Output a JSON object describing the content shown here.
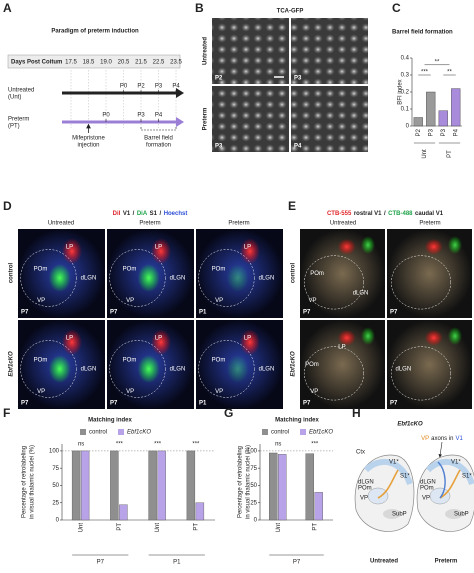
{
  "panel_a": {
    "letter": "A",
    "title": "Paradigm of preterm induction",
    "header_label": "Days Post Coitum",
    "days": [
      "17.5",
      "18.5",
      "19.0",
      "20.5",
      "21.5",
      "22.5",
      "23.5"
    ],
    "rows": [
      {
        "label": [
          "Untreated",
          "(Unt)"
        ],
        "ages": [
          "P0",
          "P2",
          "P3",
          "P4"
        ]
      },
      {
        "label": [
          "Preterm",
          "(PT)"
        ],
        "ages": [
          "P0",
          "P3",
          "P4"
        ]
      }
    ],
    "arrow_label": [
      "Mifepristone",
      "injection"
    ],
    "bracket_label": [
      "Barrel field",
      "formation"
    ]
  },
  "panel_b": {
    "letter": "B",
    "title": "TCA-GFP",
    "rows": [
      "Untreated",
      "Preterm"
    ],
    "image_labels": [
      "P2",
      "P3",
      "P3",
      "P4"
    ]
  },
  "panel_d": {
    "letter": "D",
    "title_parts": [
      "DiI",
      "V1",
      "/",
      "DiA",
      "S1",
      "/",
      "Hoechst"
    ],
    "title_colors": [
      "#e0262b",
      "#222",
      "#222",
      "#1fa34a",
      "#222",
      "#222",
      "#2b4fd6"
    ],
    "columns": [
      "Untreated",
      "Preterm",
      "Preterm"
    ],
    "rows": [
      "control",
      "Ebf1cKO"
    ],
    "images": [
      {
        "age": "P7",
        "regions": [
          "LP",
          "POm",
          "dLGN",
          "VP"
        ]
      },
      {
        "age": "P7",
        "regions": [
          "LP",
          "POm",
          "dLGN",
          "VP"
        ]
      },
      {
        "age": "P1",
        "regions": [
          "LP",
          "POm",
          "dLGN",
          "VP"
        ]
      },
      {
        "age": "P7",
        "regions": [
          "LP",
          "POm",
          "dLGN",
          "VP"
        ]
      },
      {
        "age": "P7",
        "regions": [
          "LP",
          "POm",
          "dLGN",
          "VP"
        ]
      },
      {
        "age": "P1",
        "regions": [
          "LP",
          "POm",
          "dLGN",
          "VP"
        ]
      }
    ]
  },
  "panel_e": {
    "letter": "E",
    "title_parts": [
      "CTB-555",
      "rostral V1",
      "/",
      "CTB-488",
      "caudal V1"
    ],
    "title_colors": [
      "#e0262b",
      "#222",
      "#222",
      "#1fa34a",
      "#222"
    ],
    "columns": [
      "Untreated",
      "Preterm"
    ],
    "rows": [
      "control",
      "Ebf1cKO"
    ],
    "images": [
      {
        "age": "P7",
        "regions": [
          "POm",
          "dLGN",
          "VP"
        ]
      },
      {
        "age": "P7"
      },
      {
        "age": "P7",
        "regions": [
          "LP",
          "POm",
          "VP"
        ]
      },
      {
        "age": "P7",
        "regions": [
          "dLGN"
        ]
      }
    ]
  },
  "panel_h": {
    "letter": "H",
    "title": "Ebf1cKO",
    "annotation_parts": [
      "VP",
      "axons in",
      "V1"
    ],
    "annotation_colors": [
      "#e08a1e",
      "#222",
      "#2b4fd6"
    ],
    "left_labels": [
      "Ctx",
      "V1*",
      "S1*",
      "dLGN",
      "POm",
      "VP",
      "SubP"
    ],
    "right_labels": [
      "V1*",
      "S1*",
      "dLGN",
      "POm",
      "VP",
      "SubP"
    ],
    "captions": [
      "Untreated",
      "Preterm"
    ]
  },
  "chart_data": [
    {
      "type": "bar",
      "letter": "C",
      "title": "Barrel field formation",
      "y_label": [
        "BFI index"
      ],
      "categories": [
        "P2",
        "P3",
        "P3",
        "P4"
      ],
      "groups": [
        "Unt",
        "PT"
      ],
      "values": [
        0.05,
        0.2,
        0.09,
        0.22
      ],
      "colors": [
        "#9a9a9a",
        "#9a9a9a",
        "#a98bdc",
        "#a98bdc"
      ],
      "ylim": [
        0,
        0.4
      ],
      "yticks": [
        0,
        0.1,
        0.2,
        0.3,
        0.4
      ],
      "annotations": [
        "***",
        "**",
        "**"
      ]
    },
    {
      "type": "grouped_bar",
      "letter": "F",
      "title": "Matching index",
      "y_label": [
        "Percentage of retrolabeling",
        "in visual thalamic nuclei (%)"
      ],
      "categories": [
        "Unt",
        "PT",
        "Unt",
        "PT"
      ],
      "groups": [
        "P7",
        "P1"
      ],
      "series": [
        {
          "name": "control",
          "color": "#8f8f8f",
          "values": [
            100,
            100,
            100,
            100
          ]
        },
        {
          "name": "Ebf1cKO",
          "color": "#b9a3e8",
          "values": [
            100,
            22,
            100,
            25
          ]
        }
      ],
      "ylim": [
        0,
        110
      ],
      "yticks": [
        0,
        25,
        50,
        75,
        100
      ],
      "reference_line": 100,
      "annotations": [
        "ns",
        "***",
        "***",
        "***"
      ]
    },
    {
      "type": "grouped_bar",
      "letter": "G",
      "title": "Matching index",
      "y_label": [
        "Percentage of retrolabeling",
        "in visual thalamic nuclei (%)"
      ],
      "categories": [
        "Unt",
        "PT"
      ],
      "groups": [
        "P7"
      ],
      "series": [
        {
          "name": "control",
          "color": "#8f8f8f",
          "values": [
            97,
            96
          ]
        },
        {
          "name": "Ebf1cKO",
          "color": "#b9a3e8",
          "values": [
            95,
            40
          ]
        }
      ],
      "ylim": [
        0,
        110
      ],
      "yticks": [
        0,
        25,
        50,
        75,
        100
      ],
      "reference_line": 100,
      "annotations": [
        "ns",
        "***"
      ]
    }
  ]
}
